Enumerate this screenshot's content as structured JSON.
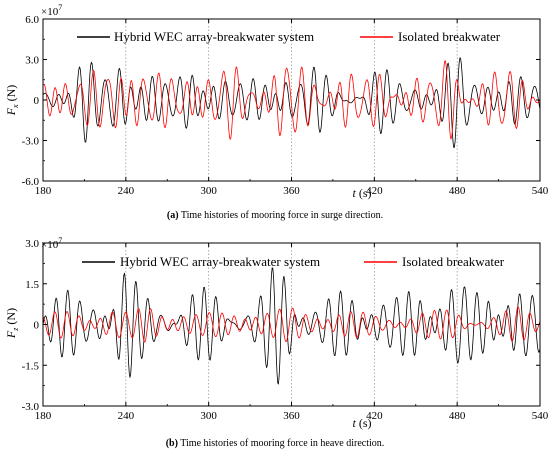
{
  "figure": {
    "panel_a": {
      "caption_label": "(a)",
      "caption_text": " Time histories of mooring force in surge direction.",
      "exponent_base": "×10",
      "exponent_power": "7",
      "ylabel_main": "F",
      "ylabel_sub": "x",
      "ylabel_unit": " (N)",
      "xlabel_main": "t",
      "xlabel_unit": " (s)"
    },
    "panel_b": {
      "caption_label": "(b)",
      "caption_text": " Time histories of mooring force in heave direction.",
      "exponent_base": "×10",
      "exponent_power": "7",
      "ylabel_main": "F",
      "ylabel_sub": "z",
      "ylabel_unit": " (N)",
      "xlabel_main": "t",
      "xlabel_unit": " (s)"
    }
  },
  "colors": {
    "hybrid": "#000000",
    "isolated": "#ff0000",
    "grid": "#9a9a9a"
  },
  "chart_data": [
    {
      "type": "line",
      "panel": "a",
      "xlabel": "t (s)",
      "ylabel": "Fx (N)",
      "y_multiplier": "×10^7",
      "xlim": [
        180,
        540
      ],
      "ylim": [
        -6.0,
        6.0
      ],
      "xticks": [
        180,
        240,
        300,
        360,
        420,
        480,
        540
      ],
      "xtick_labels": [
        "180",
        "240",
        "300",
        "360",
        "420",
        "480",
        "540"
      ],
      "yticks": [
        -6.0,
        -3.0,
        0,
        3.0,
        6.0
      ],
      "ytick_labels": [
        "-6.0",
        "-3.0",
        "0",
        "3.0",
        "6.0"
      ],
      "grid": "dotted vertical lines at x ticks",
      "legend_position": "top",
      "series": [
        {
          "name": "Hybrid WEC array-breakwater system",
          "color": "#000000",
          "sample_period_s": 0.5,
          "signal": {
            "carrier_period_s": [
              8.9,
              10.7,
              7.4
            ],
            "components_amp": [
              1.0,
              0.8,
              0.5
            ],
            "phase": 0.0,
            "envelope_peaks": [
              [
                210,
                2.6
              ],
              [
                235,
                3.3
              ],
              [
                255,
                1.8
              ],
              [
                285,
                2.1
              ],
              [
                310,
                1.9
              ],
              [
                358,
                3.2
              ],
              [
                375,
                2.0
              ],
              [
                420,
                2.2
              ],
              [
                450,
                1.8
              ],
              [
                480,
                3.0
              ],
              [
                520,
                1.9
              ]
            ],
            "base_amplitude": 1.3
          }
        },
        {
          "name": "Isolated breakwater",
          "color": "#ff0000",
          "sample_period_s": 0.5,
          "signal": {
            "carrier_period_s": [
              9.4,
              11.6,
              6.9
            ],
            "components_amp": [
              1.0,
              0.7,
              0.45
            ],
            "phase": 1.3,
            "envelope_peaks": [
              [
                195,
                2.0
              ],
              [
                232,
                3.2
              ],
              [
                248,
                2.6
              ],
              [
                285,
                2.5
              ],
              [
                312,
                2.4
              ],
              [
                356,
                3.1
              ],
              [
                395,
                2.3
              ],
              [
                435,
                2.4
              ],
              [
                478,
                3.0
              ],
              [
                515,
                2.2
              ]
            ],
            "base_amplitude": 1.5
          }
        }
      ]
    },
    {
      "type": "line",
      "panel": "b",
      "xlabel": "t (s)",
      "ylabel": "Fz (N)",
      "y_multiplier": "×10^7",
      "xlim": [
        180,
        540
      ],
      "ylim": [
        -3.0,
        3.0
      ],
      "xticks": [
        180,
        240,
        300,
        360,
        420,
        480,
        540
      ],
      "xtick_labels": [
        "180",
        "240",
        "300",
        "360",
        "420",
        "480",
        "540"
      ],
      "yticks": [
        -3.0,
        -1.5,
        0,
        1.5,
        3.0
      ],
      "ytick_labels": [
        "-3.0",
        "-1.5",
        "0",
        "1.5",
        "3.0"
      ],
      "grid": "dotted vertical lines at x ticks",
      "legend_position": "top",
      "series": [
        {
          "name": "Hybrid WEC array-breakwater system",
          "color": "#000000",
          "sample_period_s": 0.5,
          "signal": {
            "carrier_period_s": [
              8.2,
              9.9,
              7.1
            ],
            "components_amp": [
              1.0,
              0.85,
              0.4
            ],
            "phase": 0.4,
            "envelope_peaks": [
              [
                200,
                1.0
              ],
              [
                228,
                1.6
              ],
              [
                236,
                1.9
              ],
              [
                262,
                1.1
              ],
              [
                280,
                1.2
              ],
              [
                305,
                1.1
              ],
              [
                352,
                1.7
              ],
              [
                358,
                1.9
              ],
              [
                380,
                1.0
              ],
              [
                430,
                1.2
              ],
              [
                448,
                1.0
              ],
              [
                480,
                1.8
              ],
              [
                510,
                1.1
              ],
              [
                530,
                1.3
              ]
            ],
            "base_amplitude": 0.95
          }
        },
        {
          "name": "Isolated breakwater",
          "color": "#ff0000",
          "sample_period_s": 0.5,
          "signal": {
            "carrier_period_s": [
              8.6,
              10.2,
              7.6
            ],
            "components_amp": [
              1.0,
              0.6,
              0.35
            ],
            "phase": 2.1,
            "envelope_peaks": [
              [
                230,
                0.8
              ],
              [
                255,
                0.55
              ],
              [
                300,
                0.5
              ],
              [
                360,
                0.75
              ],
              [
                420,
                0.45
              ],
              [
                482,
                0.7
              ],
              [
                525,
                0.5
              ]
            ],
            "base_amplitude": 0.38
          }
        }
      ]
    }
  ]
}
